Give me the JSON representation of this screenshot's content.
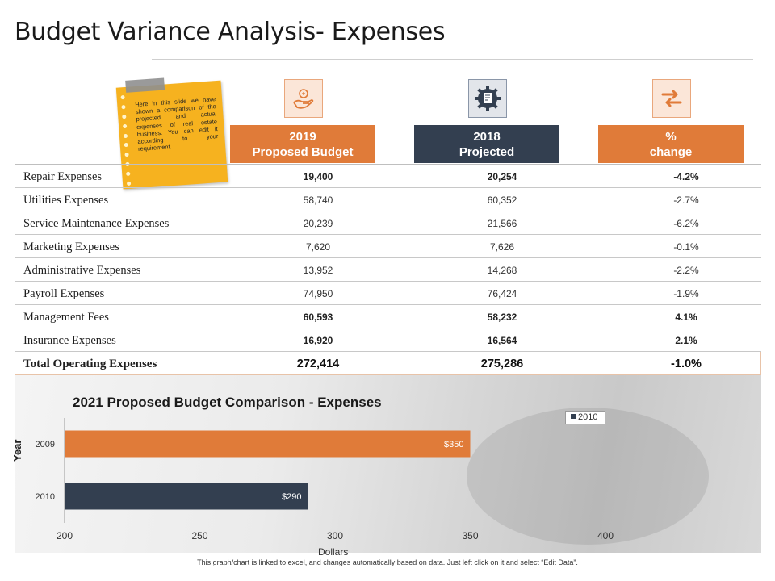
{
  "page": {
    "title": "Budget Variance Analysis- Expenses",
    "note": "Here in this slide we have shown a comparison of the projected and actual expenses of real estate business. You can edit it according to your requirement.",
    "footnote": "This graph/chart is linked to excel, and changes automatically based on data. Just left click on it and select “Edit Data”."
  },
  "table": {
    "headers": [
      {
        "line1": "2019",
        "line2": "Proposed Budget",
        "color": "#e07b39",
        "icon": "hand-coin-icon"
      },
      {
        "line1": "2018",
        "line2": "Projected",
        "color": "#333f50",
        "icon": "gear-document-icon"
      },
      {
        "line1": "%",
        "line2": "change",
        "color": "#e07b39",
        "icon": "swap-arrows-icon"
      }
    ],
    "rows": [
      {
        "label": "Repair Expenses",
        "v2019": "19,400",
        "v2018": "20,254",
        "change": "-4.2%",
        "bold": true
      },
      {
        "label": "Utilities Expenses",
        "v2019": "58,740",
        "v2018": "60,352",
        "change": "-2.7%",
        "bold": false
      },
      {
        "label": "Service Maintenance Expenses",
        "v2019": "20,239",
        "v2018": "21,566",
        "change": "-6.2%",
        "bold": false
      },
      {
        "label": "Marketing Expenses",
        "v2019": "7,620",
        "v2018": "7,626",
        "change": "-0.1%",
        "bold": false
      },
      {
        "label": "Administrative Expenses",
        "v2019": "13,952",
        "v2018": "14,268",
        "change": "-2.2%",
        "bold": false
      },
      {
        "label": "Payroll Expenses",
        "v2019": "74,950",
        "v2018": "76,424",
        "change": "-1.9%",
        "bold": false
      },
      {
        "label": "Management Fees",
        "v2019": "60,593",
        "v2018": "58,232",
        "change": "4.1%",
        "bold": true
      },
      {
        "label": "Insurance Expenses",
        "v2019": "16,920",
        "v2018": "16,564",
        "change": "2.1%",
        "bold": true
      }
    ],
    "total": {
      "label": "Total Operating Expenses",
      "v2019": "272,414",
      "v2018": "275,286",
      "change": "-1.0%"
    }
  },
  "chart_data": {
    "type": "bar",
    "orientation": "horizontal",
    "title": "2021 Proposed Budget Comparison - Expenses",
    "xlabel": "Dollars",
    "ylabel": "Year",
    "xlim": [
      200,
      400
    ],
    "xticks": [
      200,
      250,
      300,
      350,
      400
    ],
    "categories": [
      "2009",
      "2010"
    ],
    "values": [
      350,
      290
    ],
    "data_labels": [
      "$350",
      "$290"
    ],
    "bar_colors": [
      "#e07b39",
      "#333f50"
    ],
    "legend": {
      "entries": [
        "2010"
      ],
      "placement": "top-right"
    },
    "grid": false
  }
}
